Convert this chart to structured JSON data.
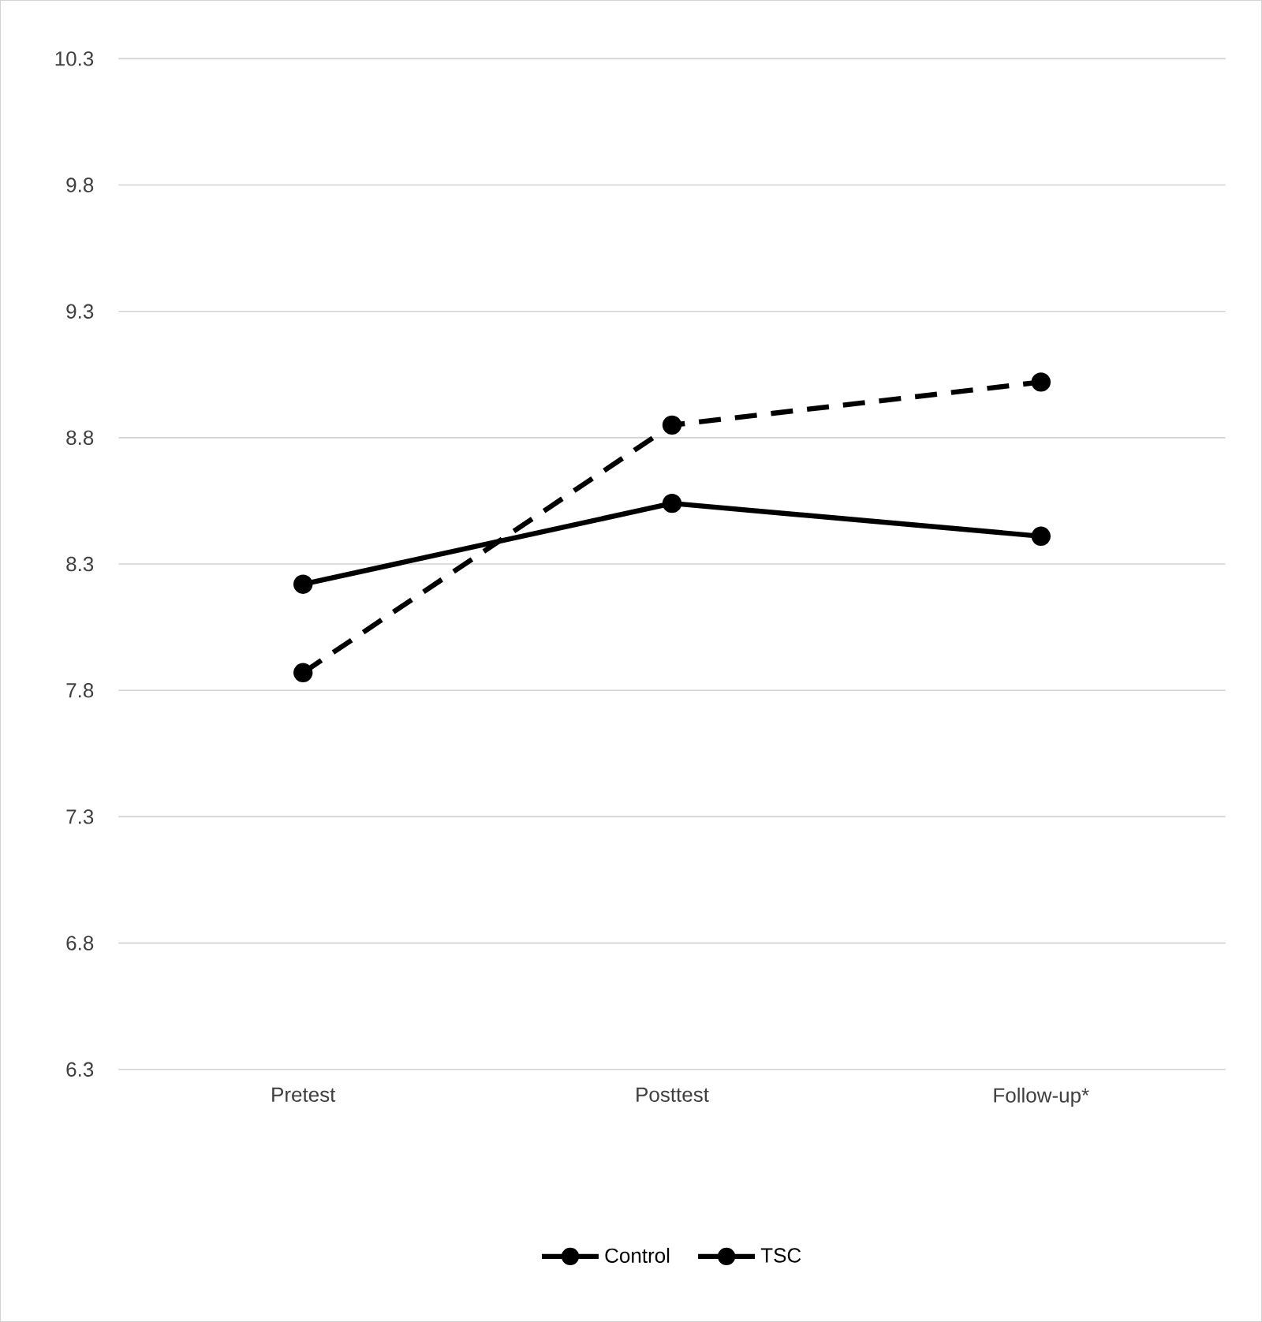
{
  "chart_data": {
    "type": "line",
    "categories": [
      "Pretest",
      "Posttest",
      "Follow-up*"
    ],
    "series": [
      {
        "name": "Control",
        "color": "#000000",
        "values": [
          8.22,
          8.54,
          8.41
        ],
        "line_style": "solid"
      },
      {
        "name": "TSC",
        "color": "#000000",
        "values": [
          7.87,
          8.85,
          9.02
        ],
        "line_style": "dashed"
      }
    ],
    "ylim": [
      6.3,
      10.3
    ],
    "yticks": [
      6.3,
      6.8,
      7.3,
      7.8,
      8.3,
      8.8,
      9.3,
      9.8,
      10.3
    ],
    "grid": "y",
    "legend": "bottom",
    "marker": "circle"
  }
}
